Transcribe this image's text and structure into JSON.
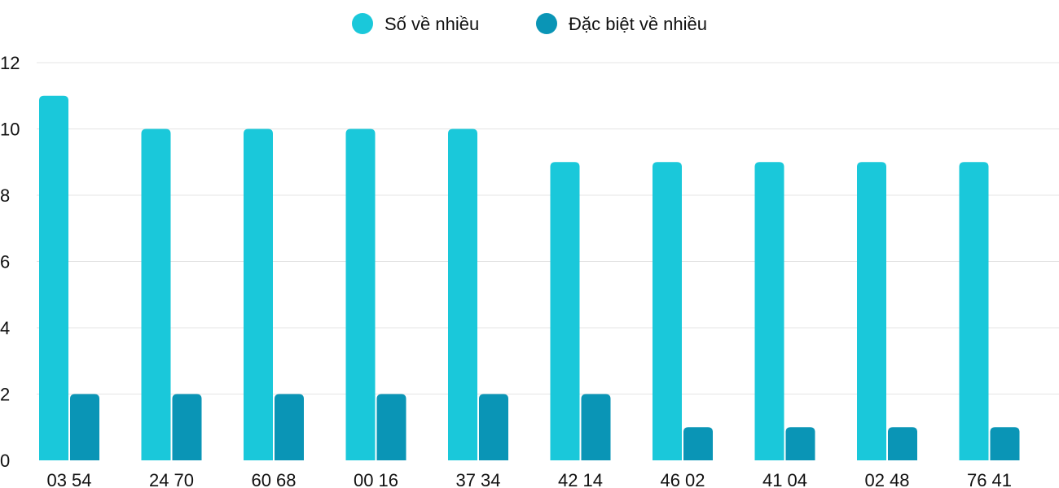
{
  "chart_data": {
    "type": "bar",
    "categories": [
      "03 54",
      "24 70",
      "60 68",
      "00 16",
      "37 34",
      "42 14",
      "46 02",
      "41 04",
      "02 48",
      "76 41"
    ],
    "series": [
      {
        "name": "Số về nhiều",
        "color": "#1ac8da",
        "values": [
          11,
          10,
          10,
          10,
          10,
          9,
          9,
          9,
          9,
          9
        ]
      },
      {
        "name": "Đặc biệt về nhiều",
        "color": "#0a95b6",
        "values": [
          2,
          2,
          2,
          2,
          2,
          2,
          1,
          1,
          1,
          1
        ]
      }
    ],
    "title": "",
    "xlabel": "",
    "ylabel": "",
    "ylim": [
      0,
      12
    ],
    "yticks": [
      0,
      2,
      4,
      6,
      8,
      10,
      12
    ],
    "grid": true,
    "legend_position": "top-center"
  }
}
